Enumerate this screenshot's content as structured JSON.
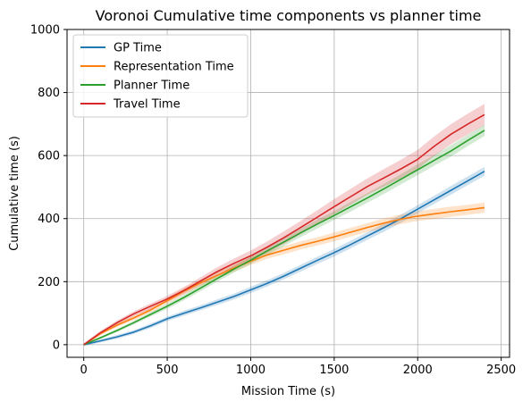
{
  "chart_data": {
    "type": "line",
    "title": "Voronoi Cumulative time components vs planner time",
    "xlabel": "Mission Time (s)",
    "ylabel": "Cumulative time (s)",
    "xlim": [
      -100,
      2550
    ],
    "ylim": [
      -40,
      1000
    ],
    "xticks": [
      0,
      500,
      1000,
      1500,
      2000,
      2500
    ],
    "yticks": [
      0,
      200,
      400,
      600,
      800,
      1000
    ],
    "grid": true,
    "legend_position": "top-left",
    "x": [
      0,
      100,
      200,
      300,
      400,
      500,
      600,
      700,
      800,
      900,
      1000,
      1100,
      1200,
      1300,
      1400,
      1500,
      1600,
      1700,
      1800,
      1900,
      2000,
      2100,
      2200,
      2300,
      2400
    ],
    "series": [
      {
        "name": "GP Time",
        "color": "#1f77b4",
        "values": [
          0,
          12,
          25,
          40,
          60,
          82,
          100,
          117,
          135,
          153,
          174,
          195,
          218,
          243,
          268,
          292,
          318,
          345,
          372,
          400,
          430,
          460,
          490,
          520,
          550
        ],
        "band": [
          4,
          5,
          6,
          6,
          7,
          7,
          8,
          8,
          9,
          9,
          10,
          10,
          10,
          11,
          11,
          12,
          12,
          12,
          13,
          13,
          13,
          13,
          14,
          14,
          14
        ]
      },
      {
        "name": "Representation Time",
        "color": "#ff7f0e",
        "values": [
          0,
          35,
          62,
          85,
          110,
          140,
          170,
          196,
          220,
          243,
          265,
          285,
          300,
          315,
          328,
          342,
          357,
          372,
          386,
          398,
          408,
          415,
          422,
          428,
          435
        ],
        "band": [
          3,
          5,
          6,
          7,
          8,
          9,
          10,
          10,
          11,
          11,
          12,
          12,
          13,
          13,
          13,
          14,
          14,
          14,
          15,
          15,
          15,
          16,
          16,
          16,
          16
        ]
      },
      {
        "name": "Planner Time",
        "color": "#2ca02c",
        "values": [
          0,
          22,
          45,
          70,
          96,
          122,
          150,
          180,
          210,
          240,
          268,
          298,
          326,
          355,
          383,
          410,
          438,
          466,
          495,
          525,
          555,
          585,
          615,
          648,
          680
        ],
        "band": [
          3,
          4,
          5,
          6,
          7,
          8,
          9,
          10,
          10,
          11,
          12,
          12,
          13,
          13,
          14,
          14,
          15,
          15,
          16,
          16,
          17,
          17,
          18,
          18,
          18
        ]
      },
      {
        "name": "Travel Time",
        "color": "#d62728",
        "values": [
          0,
          38,
          70,
          98,
          122,
          145,
          172,
          202,
          232,
          258,
          282,
          310,
          340,
          372,
          405,
          438,
          470,
          502,
          530,
          558,
          588,
          630,
          668,
          700,
          730
        ],
        "band": [
          4,
          6,
          7,
          8,
          9,
          10,
          11,
          12,
          14,
          15,
          17,
          18,
          20,
          21,
          22,
          24,
          25,
          26,
          28,
          29,
          30,
          31,
          32,
          33,
          34
        ]
      }
    ]
  }
}
